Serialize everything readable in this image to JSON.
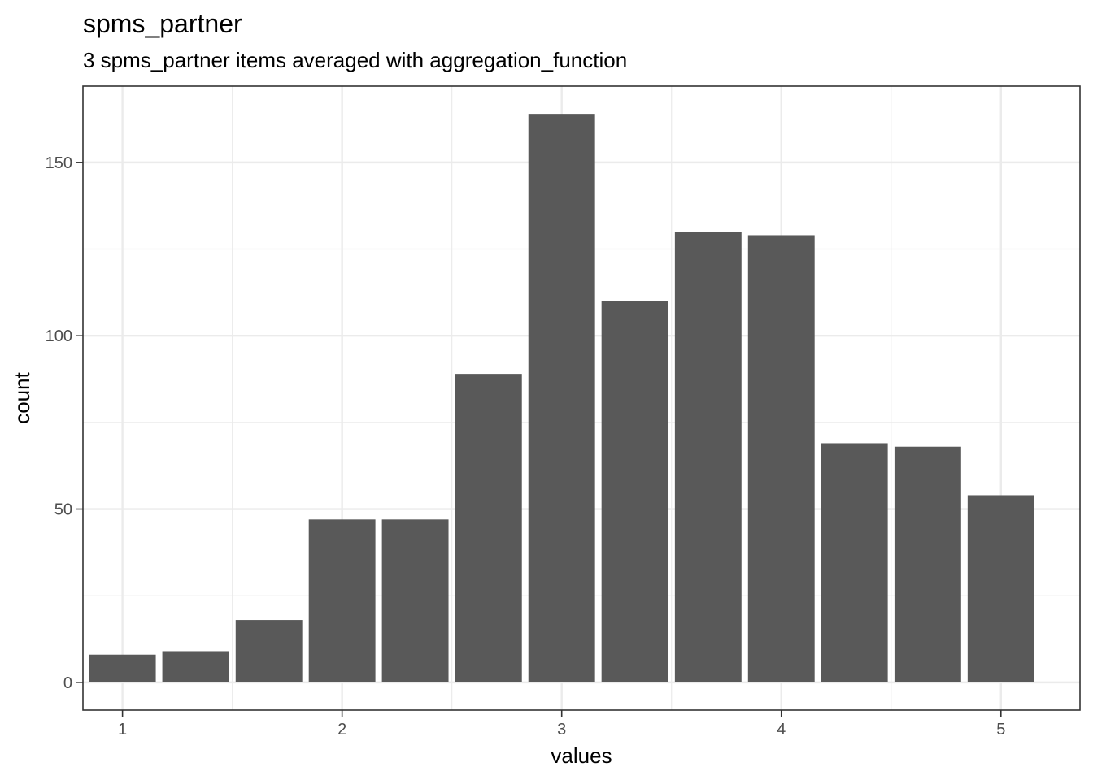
{
  "chart_data": {
    "type": "bar",
    "title": "spms_partner",
    "subtitle": "3 spms_partner items averaged with aggregation_function",
    "xlabel": "values",
    "ylabel": "count",
    "x_ticks": [
      "1",
      "2",
      "3",
      "4",
      "5"
    ],
    "y_ticks": [
      "0",
      "50",
      "100",
      "150"
    ],
    "xlim": [
      0.82,
      5.36
    ],
    "ylim": [
      -8,
      172
    ],
    "grid": true,
    "bar_color": "#595959",
    "bins": [
      {
        "x": 1.0,
        "count": 8
      },
      {
        "x": 1.333,
        "count": 9
      },
      {
        "x": 1.667,
        "count": 18
      },
      {
        "x": 2.0,
        "count": 47
      },
      {
        "x": 2.333,
        "count": 47
      },
      {
        "x": 2.667,
        "count": 89
      },
      {
        "x": 3.0,
        "count": 164
      },
      {
        "x": 3.333,
        "count": 110
      },
      {
        "x": 3.667,
        "count": 130
      },
      {
        "x": 4.0,
        "count": 129
      },
      {
        "x": 4.333,
        "count": 69
      },
      {
        "x": 4.667,
        "count": 68
      },
      {
        "x": 5.0,
        "count": 54
      }
    ]
  }
}
